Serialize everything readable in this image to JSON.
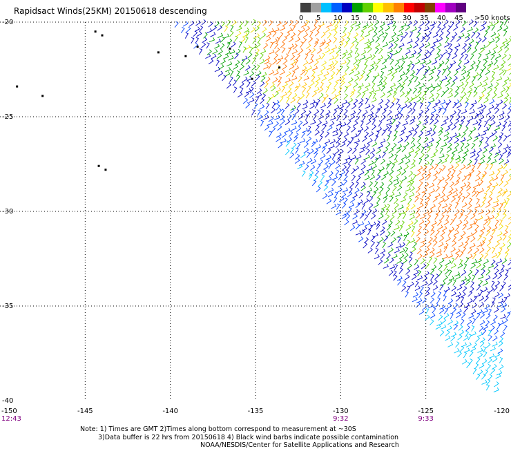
{
  "title": "Rapidsact Winds(25KM) 20150618 descending",
  "legend": {
    "units": ">50 knots",
    "labels": [
      "0",
      "5",
      "10",
      "15",
      "20",
      "25",
      "30",
      "35",
      "40",
      "45"
    ],
    "colors": [
      "#404040",
      "#a0a0a0",
      "#00c0ff",
      "#0060ff",
      "#0000c0",
      "#00a000",
      "#60d000",
      "#ffff00",
      "#ffc000",
      "#ff8000",
      "#ff0000",
      "#c00000",
      "#804000",
      "#ff00ff",
      "#a000c0",
      "#600080"
    ]
  },
  "axes": {
    "lat_labels": [
      "-20",
      "-25",
      "-30",
      "-35",
      "-40"
    ],
    "lon_labels": [
      "-150",
      "-145",
      "-140",
      "-135",
      "-130",
      "-125",
      "-120"
    ]
  },
  "times": [
    {
      "label": "12:43",
      "lon": -150
    },
    {
      "label": "9:32",
      "lon": -130
    },
    {
      "label": "9:33",
      "lon": -125
    }
  ],
  "notes": [
    "Note: 1) Times are GMT 2)Times along bottom correspond to measurement at ~30S",
    "3)Data buffer is 22 hrs from 20150618 4) Black wind barbs indicate possible contamination",
    "NOAA/NESDIS/Center for Satellite Applications and Research"
  ],
  "map": {
    "lon_range": [
      -150,
      -120
    ],
    "lat_range": [
      -40,
      -20
    ],
    "grid": true,
    "islands": [
      {
        "lon": -149.0,
        "lat": -23.4
      },
      {
        "lon": -147.5,
        "lat": -23.9
      },
      {
        "lon": -144.2,
        "lat": -27.6
      },
      {
        "lon": -143.8,
        "lat": -27.8
      },
      {
        "lon": -144.4,
        "lat": -20.5
      },
      {
        "lon": -144.0,
        "lat": -20.7
      },
      {
        "lon": -140.7,
        "lat": -21.6
      },
      {
        "lon": -139.1,
        "lat": -21.8
      },
      {
        "lon": -138.4,
        "lat": -21.3
      },
      {
        "lon": -136.5,
        "lat": -21.4
      },
      {
        "lon": -135.2,
        "lat": -23.0
      },
      {
        "lon": -133.6,
        "lat": -22.4
      }
    ]
  }
}
